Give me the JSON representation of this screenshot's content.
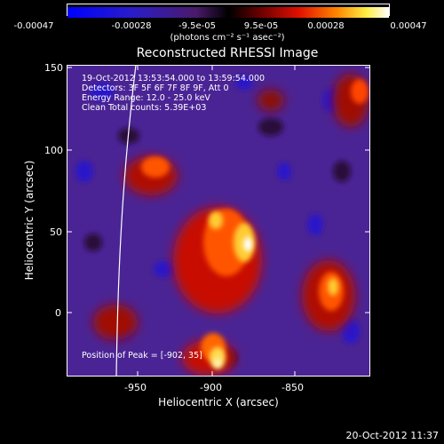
{
  "colorbar": {
    "ticks": [
      "-0.00047",
      "-0.00028",
      "-9.5e-05",
      "9.5e-05",
      "0.00028",
      "0.00047"
    ],
    "unit_label": "(photons cm⁻² s⁻¹ asec⁻²)"
  },
  "plot": {
    "title": "Reconstructed RHESSI Image",
    "info_lines": [
      "19-Oct-2012 13:53:54.000 to 13:59:54.000",
      "Detectors: 3F 5F 6F 7F 8F 9F, Att 0",
      "Energy Range: 12.0 - 25.0 keV",
      "Clean    Total counts: 5.39E+03"
    ],
    "peak_label": "Position of Peak = [-902, 35]",
    "xlabel": "Heliocentric X (arcsec)",
    "ylabel": "Heliocentric Y (arcsec)",
    "x_ticks": [
      "-950",
      "-900",
      "-850"
    ],
    "y_ticks": [
      "150",
      "100",
      "50",
      "0"
    ],
    "x_range": [
      -995,
      -805
    ],
    "y_range": [
      -40,
      152
    ],
    "limb_color": "#ffffff"
  },
  "timestamp": "20-Oct-2012 11:37",
  "colors": {
    "negative_low": "#0000ff",
    "mid": "#5a2c9a",
    "hot": "#ff6600",
    "hottest": "#ffffff"
  }
}
